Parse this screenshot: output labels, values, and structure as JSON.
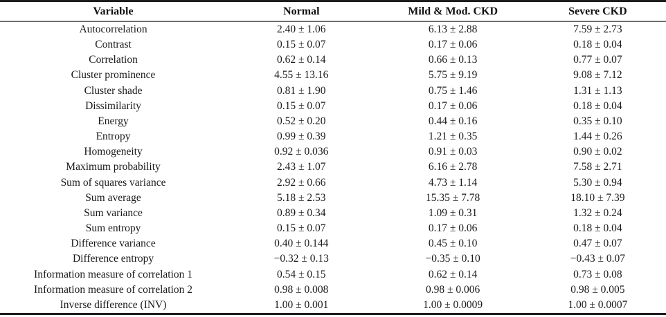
{
  "table": {
    "columns": [
      {
        "key": "variable",
        "label": "Variable"
      },
      {
        "key": "normal",
        "label": "Normal"
      },
      {
        "key": "mild_mod_ckd",
        "label": "Mild & Mod. CKD"
      },
      {
        "key": "severe_ckd",
        "label": "Severe CKD"
      }
    ],
    "rows": [
      {
        "variable": "Autocorrelation",
        "normal": "2.40 ± 1.06",
        "mild_mod_ckd": "6.13 ± 2.88",
        "severe_ckd": "7.59 ± 2.73"
      },
      {
        "variable": "Contrast",
        "normal": "0.15 ± 0.07",
        "mild_mod_ckd": "0.17 ± 0.06",
        "severe_ckd": "0.18 ± 0.04"
      },
      {
        "variable": "Correlation",
        "normal": "0.62 ± 0.14",
        "mild_mod_ckd": "0.66 ± 0.13",
        "severe_ckd": "0.77 ± 0.07"
      },
      {
        "variable": "Cluster prominence",
        "normal": "4.55 ± 13.16",
        "mild_mod_ckd": "5.75 ± 9.19",
        "severe_ckd": "9.08 ± 7.12"
      },
      {
        "variable": "Cluster shade",
        "normal": "0.81 ± 1.90",
        "mild_mod_ckd": "0.75 ± 1.46",
        "severe_ckd": "1.31 ± 1.13"
      },
      {
        "variable": "Dissimilarity",
        "normal": "0.15 ± 0.07",
        "mild_mod_ckd": "0.17 ± 0.06",
        "severe_ckd": "0.18 ± 0.04"
      },
      {
        "variable": "Energy",
        "normal": "0.52 ± 0.20",
        "mild_mod_ckd": "0.44 ± 0.16",
        "severe_ckd": "0.35 ± 0.10"
      },
      {
        "variable": "Entropy",
        "normal": "0.99 ± 0.39",
        "mild_mod_ckd": "1.21 ± 0.35",
        "severe_ckd": "1.44 ± 0.26"
      },
      {
        "variable": "Homogeneity",
        "normal": "0.92 ± 0.036",
        "mild_mod_ckd": "0.91 ± 0.03",
        "severe_ckd": "0.90 ± 0.02"
      },
      {
        "variable": "Maximum probability",
        "normal": "2.43 ± 1.07",
        "mild_mod_ckd": "6.16 ± 2.78",
        "severe_ckd": "7.58 ± 2.71"
      },
      {
        "variable": "Sum of squares variance",
        "normal": "2.92 ± 0.66",
        "mild_mod_ckd": "4.73 ± 1.14",
        "severe_ckd": "5.30 ± 0.94"
      },
      {
        "variable": "Sum average",
        "normal": "5.18 ± 2.53",
        "mild_mod_ckd": "15.35 ± 7.78",
        "severe_ckd": "18.10 ± 7.39"
      },
      {
        "variable": "Sum variance",
        "normal": "0.89 ± 0.34",
        "mild_mod_ckd": "1.09 ± 0.31",
        "severe_ckd": "1.32 ± 0.24"
      },
      {
        "variable": "Sum entropy",
        "normal": "0.15 ± 0.07",
        "mild_mod_ckd": "0.17 ± 0.06",
        "severe_ckd": "0.18 ± 0.04"
      },
      {
        "variable": "Difference variance",
        "normal": "0.40 ± 0.144",
        "mild_mod_ckd": "0.45 ± 0.10",
        "severe_ckd": "0.47 ± 0.07"
      },
      {
        "variable": "Difference entropy",
        "normal": "−0.32 ± 0.13",
        "mild_mod_ckd": "−0.35 ± 0.10",
        "severe_ckd": "−0.43 ± 0.07"
      },
      {
        "variable": "Information measure of correlation 1",
        "normal": "0.54 ± 0.15",
        "mild_mod_ckd": "0.62 ± 0.14",
        "severe_ckd": "0.73 ± 0.08"
      },
      {
        "variable": "Information measure of correlation 2",
        "normal": "0.98 ± 0.008",
        "mild_mod_ckd": "0.98 ± 0.006",
        "severe_ckd": "0.98 ± 0.005"
      },
      {
        "variable": "Inverse difference (INV)",
        "normal": "1.00 ± 0.001",
        "mild_mod_ckd": "1.00 ± 0.0009",
        "severe_ckd": "1.00 ± 0.0007"
      }
    ]
  }
}
